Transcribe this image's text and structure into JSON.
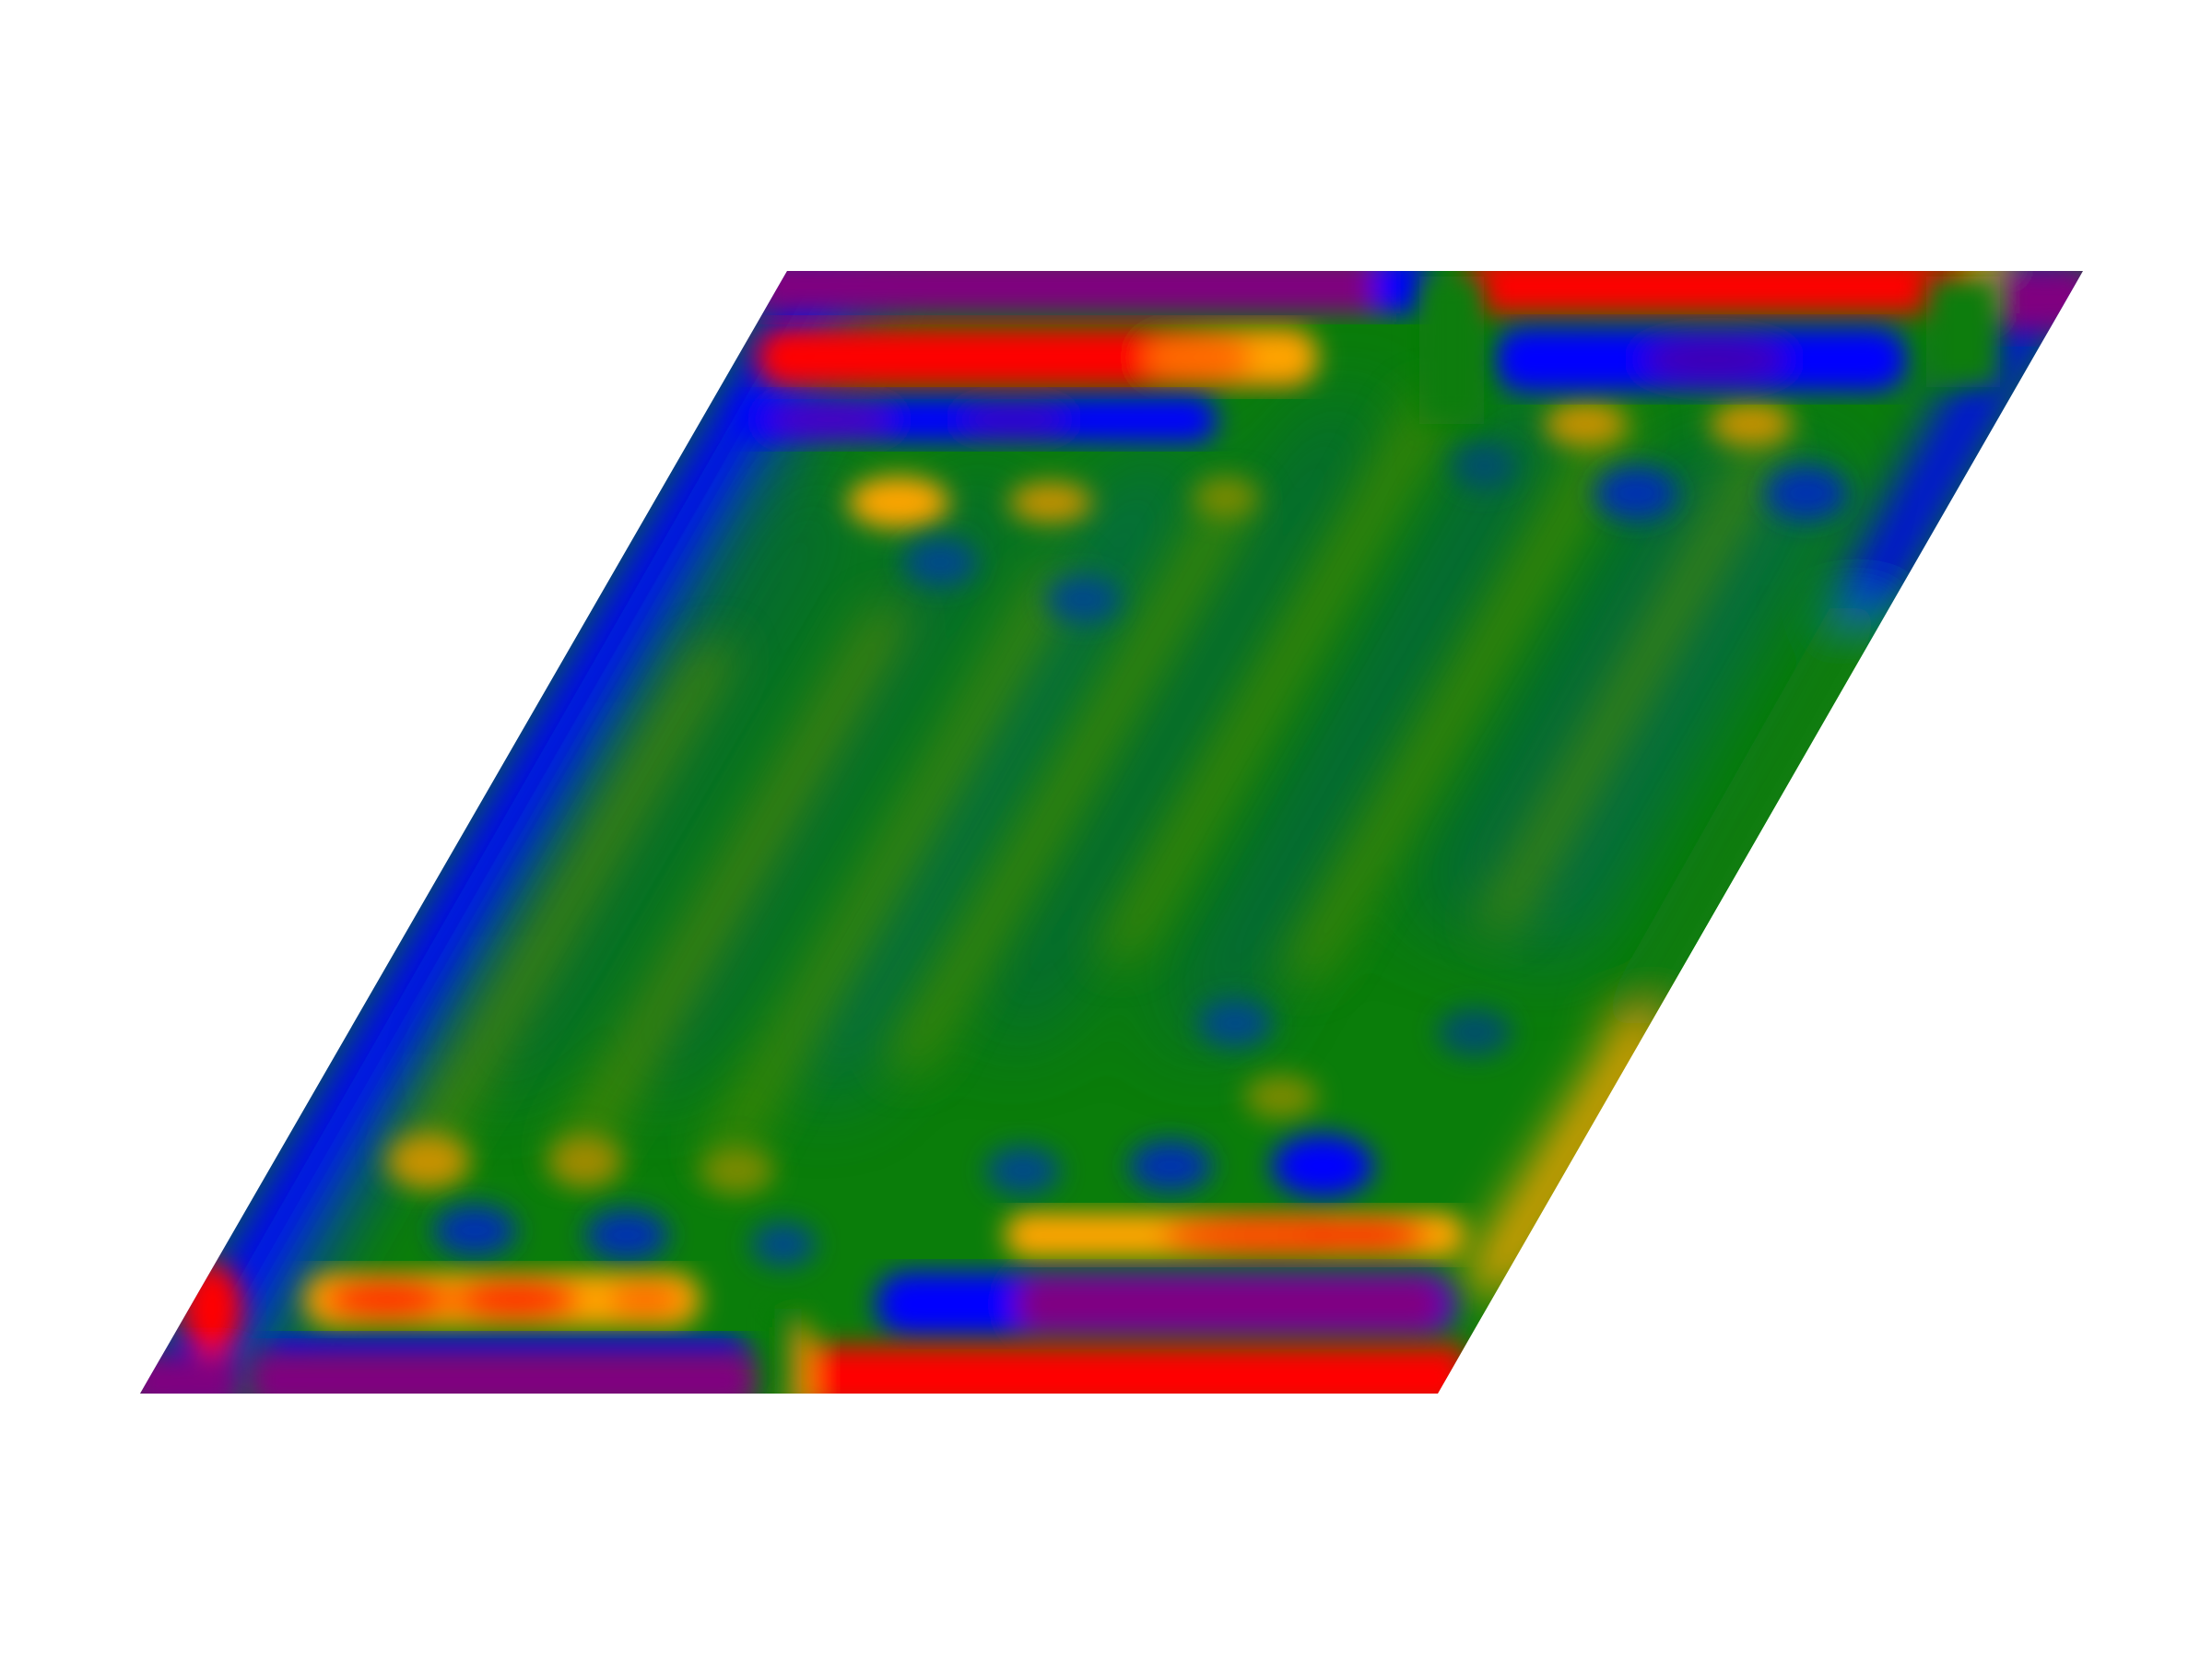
{
  "figure": {
    "type": "2d-scalar-field-map",
    "cell_shape": "parallelogram",
    "colormap": [
      "#800080",
      "#0000ff",
      "#005f5f",
      "#008000",
      "#4f8a00",
      "#ffa500",
      "#ff0000"
    ],
    "colormap_names": [
      "purple",
      "blue",
      "teal",
      "green",
      "olive",
      "orange",
      "red"
    ],
    "background": "#ffffff",
    "has_axes": false,
    "has_colorbar": false,
    "has_title": false
  }
}
